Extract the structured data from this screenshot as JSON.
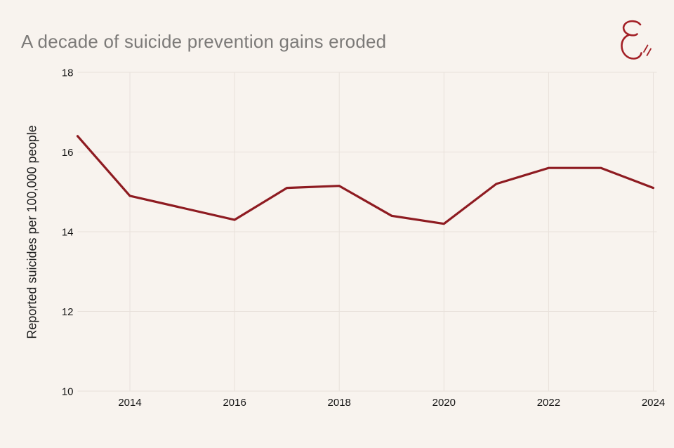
{
  "header": {
    "title": "A decade of suicide prevention gains eroded",
    "logo": "script-capital-E-with-double-slash"
  },
  "colors": {
    "background": "#f8f3ee",
    "grid": "#e8e1db",
    "line": "#8e1b21",
    "logo": "#a32026",
    "title_text": "#7c7a78",
    "tick_text": "#151515"
  },
  "chart_data": {
    "type": "line",
    "title": "A decade of suicide prevention gains eroded",
    "xlabel": "",
    "ylabel": "Reported suicides per 100,000 people",
    "x": [
      2013,
      2014,
      2015,
      2016,
      2017,
      2018,
      2019,
      2020,
      2021,
      2022,
      2023,
      2024
    ],
    "values": [
      16.4,
      14.9,
      14.6,
      14.3,
      15.1,
      15.15,
      14.4,
      14.2,
      15.2,
      15.6,
      15.6,
      15.1
    ],
    "ylim": [
      10,
      18
    ],
    "xlim": [
      2013,
      2024
    ],
    "yticks": [
      10,
      12,
      14,
      16,
      18
    ],
    "xticks": [
      2014,
      2016,
      2018,
      2020,
      2022,
      2024
    ],
    "grid": "on",
    "legend": "none"
  }
}
